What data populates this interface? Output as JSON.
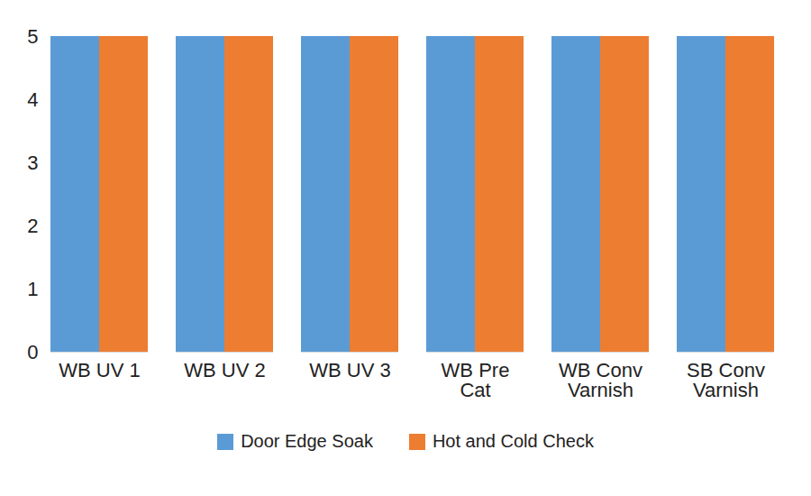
{
  "chart_data": {
    "type": "bar",
    "categories": [
      "WB UV 1",
      "WB UV 2",
      "WB UV 3",
      "WB Pre\nCat",
      "WB Conv\nVarnish",
      "SB Conv\nVarnish"
    ],
    "series": [
      {
        "name": "Door Edge Soak",
        "color": "#5b9bd5",
        "values": [
          5,
          5,
          5,
          5,
          5,
          5
        ]
      },
      {
        "name": "Hot and Cold Check",
        "color": "#ed7d31",
        "values": [
          5,
          5,
          5,
          5,
          5,
          5
        ]
      }
    ],
    "ylim": [
      0,
      5
    ],
    "yticks": [
      0,
      1,
      2,
      3,
      4,
      5
    ],
    "grid": true,
    "legend": "bottom"
  }
}
